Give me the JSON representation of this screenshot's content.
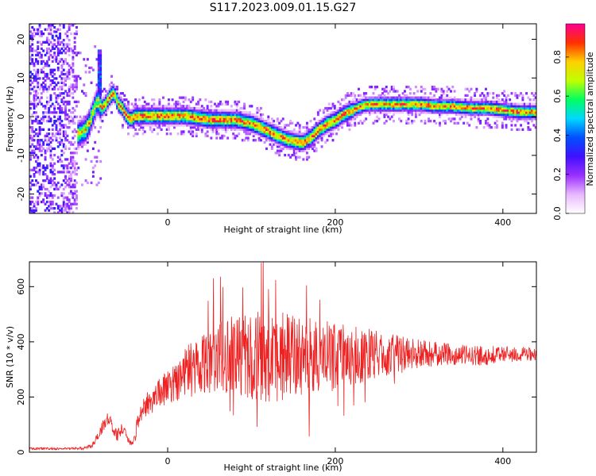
{
  "title": "S117.2023.009.01.15.G27",
  "chart_data": [
    {
      "type": "heatmap",
      "title": "S117.2023.009.01.15.G27",
      "xlabel": "Height of straight line (km)",
      "ylabel": "Frequency (Hz)",
      "xlim": [
        -165,
        440
      ],
      "ylim": [
        -25,
        24
      ],
      "xticks": [
        0,
        200,
        400
      ],
      "yticks": [
        -20,
        -10,
        0,
        10,
        20
      ],
      "colorbar": {
        "label": "Normalized spectral amplitude",
        "range": [
          0,
          0.97
        ],
        "ticks": [
          "0.0",
          "0.2",
          "0.4",
          "0.6",
          "0.8"
        ],
        "colors": [
          "#ffffff",
          "#e8b8ff",
          "#9a30ff",
          "#4010ff",
          "#0050ff",
          "#00d8ff",
          "#00ff60",
          "#c0ff00",
          "#ffd000",
          "#ff3000",
          "#ff0090"
        ]
      },
      "ridge": {
        "x": [
          -110,
          -100,
          -95,
          -90,
          -85,
          -80,
          -75,
          -70,
          -65,
          -60,
          -55,
          -50,
          -45,
          -40,
          -30,
          -20,
          0,
          20,
          50,
          80,
          100,
          110,
          120,
          130,
          140,
          150,
          160,
          170,
          180,
          190,
          200,
          210,
          220,
          230,
          240,
          260,
          280,
          300,
          320,
          340,
          360,
          380,
          400,
          420,
          440
        ],
        "y": [
          -5,
          -4,
          -2,
          1,
          4,
          2,
          3,
          5,
          6,
          3,
          2,
          0,
          -1,
          0,
          0,
          0,
          0,
          0,
          -1,
          -1,
          -2,
          -3,
          -4,
          -5,
          -6,
          -6.5,
          -7,
          -5.5,
          -3.5,
          -2,
          -1,
          0.5,
          1.5,
          2.5,
          3,
          3,
          3,
          3,
          2.5,
          2.5,
          2,
          2,
          1.5,
          1,
          1
        ]
      }
    },
    {
      "type": "line",
      "xlabel": "Height of straight line (km)",
      "ylabel": "SNR (10 * v/v)",
      "xlim": [
        -165,
        440
      ],
      "ylim": [
        0,
        690
      ],
      "xticks": [
        0,
        200,
        400
      ],
      "yticks": [
        0,
        200,
        400,
        600
      ],
      "series": [
        {
          "name": "SNR",
          "color": "#ee2222",
          "x": [
            -165,
            -140,
            -120,
            -100,
            -90,
            -80,
            -75,
            -70,
            -65,
            -60,
            -55,
            -50,
            -45,
            -40,
            -35,
            -30,
            -20,
            -10,
            0,
            10,
            20,
            30,
            40,
            60,
            80,
            100,
            120,
            140,
            160,
            180,
            200,
            220,
            240,
            260,
            280,
            300,
            320,
            340,
            360,
            380,
            400,
            420,
            440
          ],
          "mean": [
            13,
            13,
            13,
            14,
            25,
            70,
            110,
            130,
            80,
            60,
            85,
            65,
            35,
            40,
            120,
            160,
            190,
            215,
            235,
            260,
            285,
            310,
            330,
            350,
            355,
            350,
            345,
            345,
            340,
            345,
            345,
            350,
            355,
            355,
            355,
            355,
            355,
            355,
            350,
            350,
            355,
            355,
            350
          ],
          "amp": [
            4,
            4,
            4,
            5,
            8,
            25,
            30,
            25,
            15,
            20,
            20,
            15,
            10,
            15,
            40,
            45,
            55,
            55,
            60,
            75,
            90,
            110,
            120,
            130,
            150,
            160,
            170,
            160,
            150,
            140,
            120,
            110,
            95,
            80,
            70,
            55,
            45,
            40,
            35,
            35,
            30,
            30,
            25
          ]
        }
      ]
    }
  ]
}
